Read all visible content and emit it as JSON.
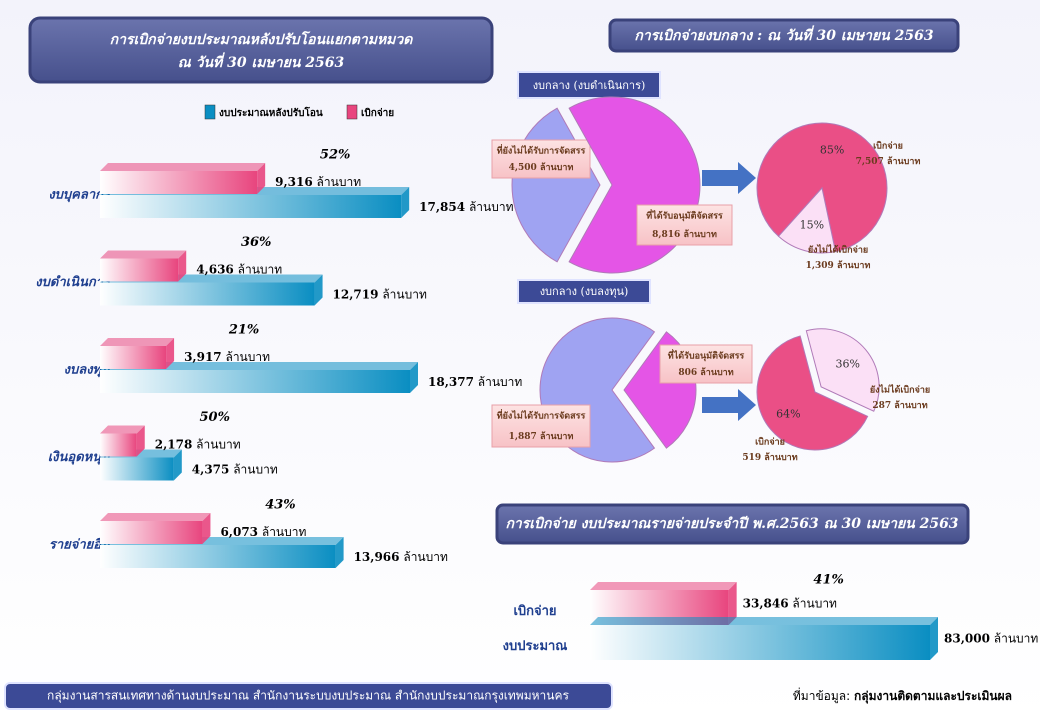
{
  "header": {
    "title": "การเบิกจ่ายงบกลาง : ณ วันที่ 30 เมษายน 2563"
  },
  "footer": {
    "left": "กลุ่มงานสารสนเทศทางด้านงบประมาณ สำนักงานระบบงบประมาณ สำนักงบประมาณกรุงเทพมหานคร",
    "source_label": "ที่มาข้อมูล:",
    "source": "กลุ่มงานติดตามและประเมินผล"
  },
  "chart_data": [
    {
      "type": "hbar",
      "title": "การเบิกจ่ายงบประมาณหลังปรับโอนแยกตามหมวด",
      "subtitle": "ณ วันที่ 30 เมษายน 2563",
      "unit": "ล้านบาท",
      "categories": [
        "งบบุคลากร",
        "งบดำเนินการ",
        "งบลงทุน",
        "เงินอุดหนุน",
        "รายจ่ายอื่น"
      ],
      "series": [
        {
          "name": "งบประมาณหลังปรับโอน",
          "color": "#0a8ec2",
          "values": [
            17854,
            12719,
            18377,
            4375,
            13966
          ],
          "value_labels": [
            "17,854",
            "12,719",
            "18,377",
            "4,375",
            "13,966"
          ]
        },
        {
          "name": "เบิกจ่าย",
          "color": "#e8457e",
          "values": [
            9316,
            4636,
            3917,
            2178,
            6073
          ],
          "value_labels": [
            "9,316",
            "4,636",
            "3,917",
            "2,178",
            "6,073"
          ]
        }
      ],
      "annotations": [
        "52%",
        "36%",
        "21%",
        "50%",
        "43%"
      ],
      "legend": "top"
    },
    {
      "type": "pie",
      "title": "งบกลาง (งบดำเนินการ)",
      "unit": "ล้านบาท",
      "categories": [
        "ที่ยังไม่ได้รับการจัดสรร",
        "ที่ได้รับอนุมัติจัดสรร"
      ],
      "values": [
        4500,
        8816
      ],
      "value_labels": [
        "4,500",
        "8,816"
      ],
      "colors": [
        "#9fa3f2",
        "#e455e6"
      ]
    },
    {
      "type": "pie",
      "unit": "ล้านบาท",
      "categories": [
        "เบิกจ่าย",
        "ยังไม่ได้เบิกจ่าย"
      ],
      "values": [
        85,
        15
      ],
      "value_labels": [
        "85%",
        "15%"
      ],
      "amounts": [
        7507,
        1309
      ],
      "amount_labels": [
        "7,507",
        "1,309"
      ],
      "colors": [
        "#ea4f86",
        "#fbe0f6"
      ]
    },
    {
      "type": "pie",
      "title": "งบกลาง (งบลงทุน)",
      "unit": "ล้านบาท",
      "categories": [
        "ที่ได้รับอนุมัติจัดสรร",
        "ที่ยังไม่ได้รับการจัดสรร"
      ],
      "values": [
        806,
        1887
      ],
      "value_labels": [
        "806",
        "1,887"
      ],
      "colors": [
        "#e455e6",
        "#9fa3f2"
      ]
    },
    {
      "type": "pie",
      "unit": "ล้านบาท",
      "categories": [
        "เบิกจ่าย",
        "ยังไม่ได้เบิกจ่าย"
      ],
      "values": [
        64,
        36
      ],
      "value_labels": [
        "64%",
        "36%"
      ],
      "amounts": [
        519,
        287
      ],
      "amount_labels": [
        "519",
        "287"
      ],
      "colors": [
        "#ea4f86",
        "#fbe0f6"
      ]
    },
    {
      "type": "hbar",
      "title": "การเบิกจ่าย งบประมาณรายจ่ายประจำปี พ.ศ.2563 ณ 30 เมษายน 2563",
      "unit": "ล้านบาท",
      "categories": [
        "เบิกจ่าย",
        "งบประมาณ"
      ],
      "values": [
        33846,
        83000
      ],
      "value_labels": [
        "33,846",
        "83,000"
      ],
      "colors": [
        "#e8457e",
        "#0a8ec2"
      ],
      "annotations": [
        "41%"
      ]
    }
  ]
}
